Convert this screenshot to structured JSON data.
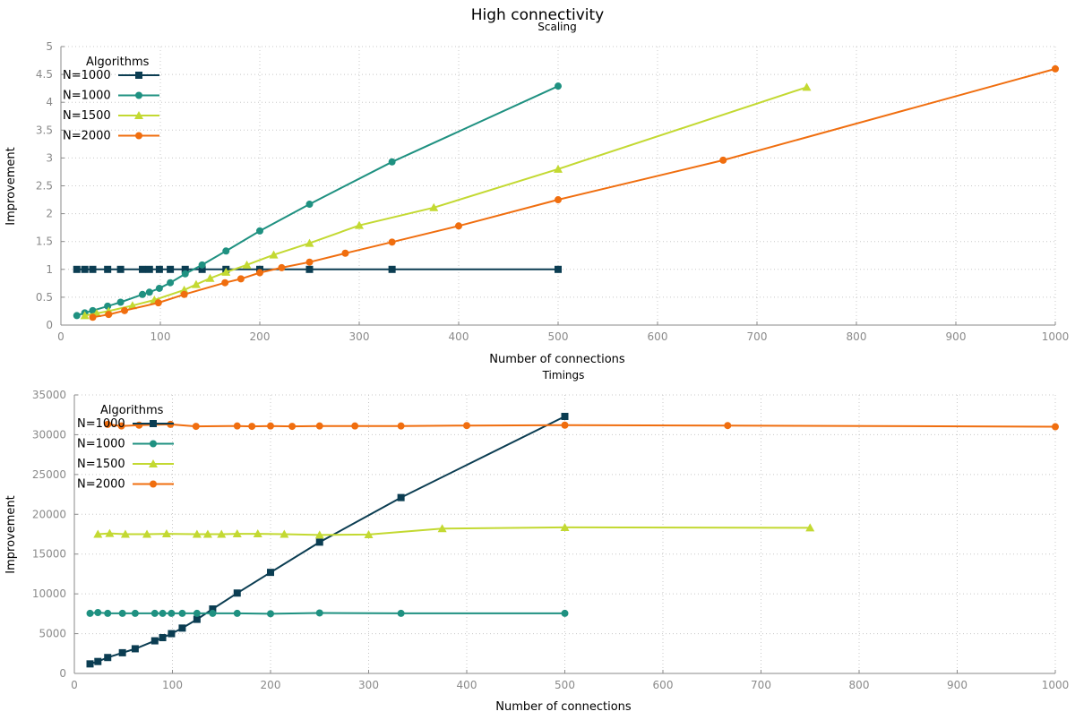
{
  "figure_title": "High connectivity",
  "chart_data": [
    {
      "type": "line",
      "title": "Scaling",
      "xlabel": "Number of connections",
      "ylabel": "Improvement",
      "xlim": [
        0,
        1000
      ],
      "ylim": [
        0,
        5
      ],
      "xticks": [
        0,
        100,
        200,
        300,
        400,
        500,
        600,
        700,
        800,
        900,
        1000
      ],
      "yticks": [
        0,
        0.5,
        1,
        1.5,
        2,
        2.5,
        3,
        3.5,
        4,
        4.5,
        5
      ],
      "grid": true,
      "legend_title": "Algorithms",
      "legend_position": "top-left",
      "series": [
        {
          "name": "N=1000",
          "color": "#0b3d52",
          "marker": "square",
          "x": [
            16,
            24,
            32,
            47,
            60,
            82,
            89,
            99,
            110,
            125,
            142,
            166,
            200,
            250,
            333,
            500
          ],
          "y": [
            1,
            1,
            1,
            1,
            1,
            1,
            1,
            1,
            1,
            1,
            1,
            1,
            1,
            1,
            1,
            1
          ]
        },
        {
          "name": "N=1000",
          "color": "#1f9181",
          "marker": "circle",
          "x": [
            16,
            24,
            32,
            47,
            60,
            82,
            89,
            99,
            110,
            125,
            142,
            166,
            200,
            250,
            333,
            500
          ],
          "y": [
            0.17,
            0.22,
            0.26,
            0.34,
            0.41,
            0.55,
            0.59,
            0.66,
            0.76,
            0.92,
            1.08,
            1.33,
            1.69,
            2.17,
            2.93,
            4.29
          ]
        },
        {
          "name": "N=1500",
          "color": "#c3d932",
          "marker": "triangle",
          "x": [
            24,
            36,
            48,
            72,
            94,
            124,
            136,
            150,
            166,
            187,
            214,
            250,
            300,
            375,
            500,
            750
          ],
          "y": [
            0.17,
            0.21,
            0.25,
            0.35,
            0.45,
            0.63,
            0.73,
            0.84,
            0.95,
            1.08,
            1.26,
            1.47,
            1.79,
            2.11,
            2.8,
            4.27
          ]
        },
        {
          "name": "N=2000",
          "color": "#f06e0f",
          "marker": "circle",
          "x": [
            32,
            48,
            64,
            98,
            124,
            165,
            181,
            200,
            222,
            250,
            286,
            333,
            400,
            500,
            666,
            1000
          ],
          "y": [
            0.14,
            0.19,
            0.26,
            0.4,
            0.55,
            0.76,
            0.83,
            0.94,
            1.03,
            1.13,
            1.29,
            1.49,
            1.78,
            2.25,
            2.96,
            4.6
          ]
        }
      ]
    },
    {
      "type": "line",
      "title": "Timings",
      "xlabel": "Number of connections",
      "ylabel": "Improvement",
      "xlim": [
        0,
        1000
      ],
      "ylim": [
        0,
        35000
      ],
      "xticks": [
        0,
        100,
        200,
        300,
        400,
        500,
        600,
        700,
        800,
        900,
        1000
      ],
      "yticks": [
        0,
        5000,
        10000,
        15000,
        20000,
        25000,
        30000,
        35000
      ],
      "grid": true,
      "legend_title": "Algorithms",
      "legend_position": "top-left",
      "series": [
        {
          "name": "N=1000",
          "color": "#0b3d52",
          "marker": "square",
          "x": [
            16,
            24,
            34,
            49,
            62,
            82,
            90,
            99,
            110,
            125,
            141,
            166,
            200,
            250,
            333,
            500
          ],
          "y": [
            1200,
            1500,
            2000,
            2600,
            3100,
            4100,
            4500,
            5000,
            5700,
            6800,
            8100,
            10100,
            12700,
            16500,
            22100,
            32300
          ]
        },
        {
          "name": "N=1000",
          "color": "#1f9181",
          "marker": "circle",
          "x": [
            16,
            24,
            34,
            49,
            62,
            82,
            90,
            99,
            110,
            125,
            141,
            166,
            200,
            250,
            333,
            500
          ],
          "y": [
            7550,
            7650,
            7550,
            7550,
            7550,
            7550,
            7550,
            7550,
            7550,
            7550,
            7550,
            7550,
            7500,
            7600,
            7550,
            7550
          ]
        },
        {
          "name": "N=1500",
          "color": "#c3d932",
          "marker": "triangle",
          "x": [
            24,
            36,
            52,
            74,
            94,
            125,
            136,
            150,
            166,
            187,
            214,
            250,
            300,
            375,
            500,
            750
          ],
          "y": [
            17500,
            17600,
            17500,
            17500,
            17550,
            17500,
            17500,
            17500,
            17550,
            17550,
            17500,
            17400,
            17450,
            18200,
            18350,
            18300
          ]
        },
        {
          "name": "N=2000",
          "color": "#f06e0f",
          "marker": "circle",
          "x": [
            34,
            48,
            66,
            98,
            124,
            166,
            181,
            200,
            222,
            250,
            286,
            333,
            400,
            500,
            666,
            1000
          ],
          "y": [
            31300,
            31100,
            31200,
            31300,
            31050,
            31100,
            31050,
            31100,
            31050,
            31100,
            31100,
            31100,
            31150,
            31200,
            31150,
            31000
          ]
        }
      ]
    }
  ]
}
